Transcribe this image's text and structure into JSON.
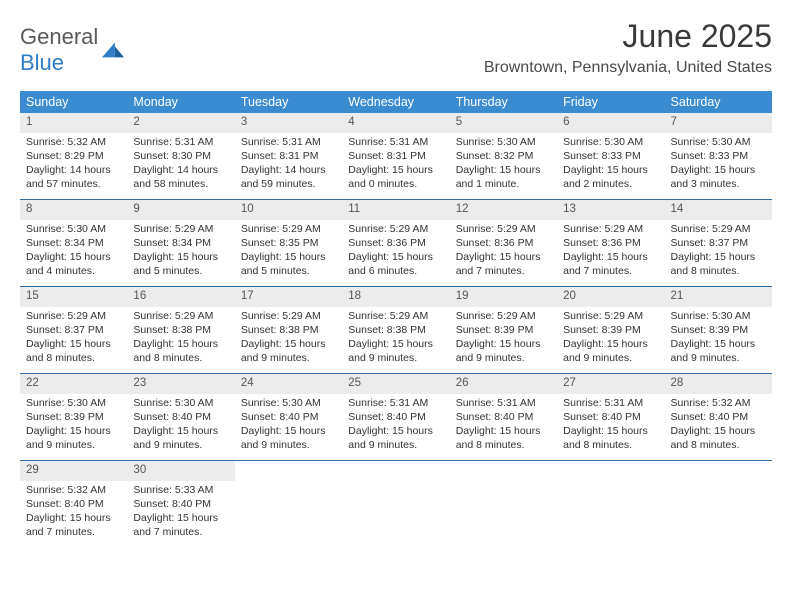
{
  "brand": {
    "word1": "General",
    "word2": "Blue"
  },
  "title": "June 2025",
  "location": "Browntown, Pennsylvania, United States",
  "colors": {
    "header_bg": "#3b8bd0",
    "header_text": "#ffffff",
    "week_divider": "#2f6fa8",
    "daynum_bg": "#ececec",
    "text": "#333333",
    "brand_gray": "#5a5a5a",
    "brand_blue": "#2f7dc4"
  },
  "typography": {
    "title_fontsize": 32,
    "location_fontsize": 16,
    "dayhead_fontsize": 12.5,
    "cell_fontsize": 10.5
  },
  "day_headers": [
    "Sunday",
    "Monday",
    "Tuesday",
    "Wednesday",
    "Thursday",
    "Friday",
    "Saturday"
  ],
  "weeks": [
    [
      {
        "n": "1",
        "sr": "Sunrise: 5:32 AM",
        "ss": "Sunset: 8:29 PM",
        "dl1": "Daylight: 14 hours",
        "dl2": "and 57 minutes."
      },
      {
        "n": "2",
        "sr": "Sunrise: 5:31 AM",
        "ss": "Sunset: 8:30 PM",
        "dl1": "Daylight: 14 hours",
        "dl2": "and 58 minutes."
      },
      {
        "n": "3",
        "sr": "Sunrise: 5:31 AM",
        "ss": "Sunset: 8:31 PM",
        "dl1": "Daylight: 14 hours",
        "dl2": "and 59 minutes."
      },
      {
        "n": "4",
        "sr": "Sunrise: 5:31 AM",
        "ss": "Sunset: 8:31 PM",
        "dl1": "Daylight: 15 hours",
        "dl2": "and 0 minutes."
      },
      {
        "n": "5",
        "sr": "Sunrise: 5:30 AM",
        "ss": "Sunset: 8:32 PM",
        "dl1": "Daylight: 15 hours",
        "dl2": "and 1 minute."
      },
      {
        "n": "6",
        "sr": "Sunrise: 5:30 AM",
        "ss": "Sunset: 8:33 PM",
        "dl1": "Daylight: 15 hours",
        "dl2": "and 2 minutes."
      },
      {
        "n": "7",
        "sr": "Sunrise: 5:30 AM",
        "ss": "Sunset: 8:33 PM",
        "dl1": "Daylight: 15 hours",
        "dl2": "and 3 minutes."
      }
    ],
    [
      {
        "n": "8",
        "sr": "Sunrise: 5:30 AM",
        "ss": "Sunset: 8:34 PM",
        "dl1": "Daylight: 15 hours",
        "dl2": "and 4 minutes."
      },
      {
        "n": "9",
        "sr": "Sunrise: 5:29 AM",
        "ss": "Sunset: 8:34 PM",
        "dl1": "Daylight: 15 hours",
        "dl2": "and 5 minutes."
      },
      {
        "n": "10",
        "sr": "Sunrise: 5:29 AM",
        "ss": "Sunset: 8:35 PM",
        "dl1": "Daylight: 15 hours",
        "dl2": "and 5 minutes."
      },
      {
        "n": "11",
        "sr": "Sunrise: 5:29 AM",
        "ss": "Sunset: 8:36 PM",
        "dl1": "Daylight: 15 hours",
        "dl2": "and 6 minutes."
      },
      {
        "n": "12",
        "sr": "Sunrise: 5:29 AM",
        "ss": "Sunset: 8:36 PM",
        "dl1": "Daylight: 15 hours",
        "dl2": "and 7 minutes."
      },
      {
        "n": "13",
        "sr": "Sunrise: 5:29 AM",
        "ss": "Sunset: 8:36 PM",
        "dl1": "Daylight: 15 hours",
        "dl2": "and 7 minutes."
      },
      {
        "n": "14",
        "sr": "Sunrise: 5:29 AM",
        "ss": "Sunset: 8:37 PM",
        "dl1": "Daylight: 15 hours",
        "dl2": "and 8 minutes."
      }
    ],
    [
      {
        "n": "15",
        "sr": "Sunrise: 5:29 AM",
        "ss": "Sunset: 8:37 PM",
        "dl1": "Daylight: 15 hours",
        "dl2": "and 8 minutes."
      },
      {
        "n": "16",
        "sr": "Sunrise: 5:29 AM",
        "ss": "Sunset: 8:38 PM",
        "dl1": "Daylight: 15 hours",
        "dl2": "and 8 minutes."
      },
      {
        "n": "17",
        "sr": "Sunrise: 5:29 AM",
        "ss": "Sunset: 8:38 PM",
        "dl1": "Daylight: 15 hours",
        "dl2": "and 9 minutes."
      },
      {
        "n": "18",
        "sr": "Sunrise: 5:29 AM",
        "ss": "Sunset: 8:38 PM",
        "dl1": "Daylight: 15 hours",
        "dl2": "and 9 minutes."
      },
      {
        "n": "19",
        "sr": "Sunrise: 5:29 AM",
        "ss": "Sunset: 8:39 PM",
        "dl1": "Daylight: 15 hours",
        "dl2": "and 9 minutes."
      },
      {
        "n": "20",
        "sr": "Sunrise: 5:29 AM",
        "ss": "Sunset: 8:39 PM",
        "dl1": "Daylight: 15 hours",
        "dl2": "and 9 minutes."
      },
      {
        "n": "21",
        "sr": "Sunrise: 5:30 AM",
        "ss": "Sunset: 8:39 PM",
        "dl1": "Daylight: 15 hours",
        "dl2": "and 9 minutes."
      }
    ],
    [
      {
        "n": "22",
        "sr": "Sunrise: 5:30 AM",
        "ss": "Sunset: 8:39 PM",
        "dl1": "Daylight: 15 hours",
        "dl2": "and 9 minutes."
      },
      {
        "n": "23",
        "sr": "Sunrise: 5:30 AM",
        "ss": "Sunset: 8:40 PM",
        "dl1": "Daylight: 15 hours",
        "dl2": "and 9 minutes."
      },
      {
        "n": "24",
        "sr": "Sunrise: 5:30 AM",
        "ss": "Sunset: 8:40 PM",
        "dl1": "Daylight: 15 hours",
        "dl2": "and 9 minutes."
      },
      {
        "n": "25",
        "sr": "Sunrise: 5:31 AM",
        "ss": "Sunset: 8:40 PM",
        "dl1": "Daylight: 15 hours",
        "dl2": "and 9 minutes."
      },
      {
        "n": "26",
        "sr": "Sunrise: 5:31 AM",
        "ss": "Sunset: 8:40 PM",
        "dl1": "Daylight: 15 hours",
        "dl2": "and 8 minutes."
      },
      {
        "n": "27",
        "sr": "Sunrise: 5:31 AM",
        "ss": "Sunset: 8:40 PM",
        "dl1": "Daylight: 15 hours",
        "dl2": "and 8 minutes."
      },
      {
        "n": "28",
        "sr": "Sunrise: 5:32 AM",
        "ss": "Sunset: 8:40 PM",
        "dl1": "Daylight: 15 hours",
        "dl2": "and 8 minutes."
      }
    ],
    [
      {
        "n": "29",
        "sr": "Sunrise: 5:32 AM",
        "ss": "Sunset: 8:40 PM",
        "dl1": "Daylight: 15 hours",
        "dl2": "and 7 minutes."
      },
      {
        "n": "30",
        "sr": "Sunrise: 5:33 AM",
        "ss": "Sunset: 8:40 PM",
        "dl1": "Daylight: 15 hours",
        "dl2": "and 7 minutes."
      },
      {
        "empty": true
      },
      {
        "empty": true
      },
      {
        "empty": true
      },
      {
        "empty": true
      },
      {
        "empty": true
      }
    ]
  ]
}
